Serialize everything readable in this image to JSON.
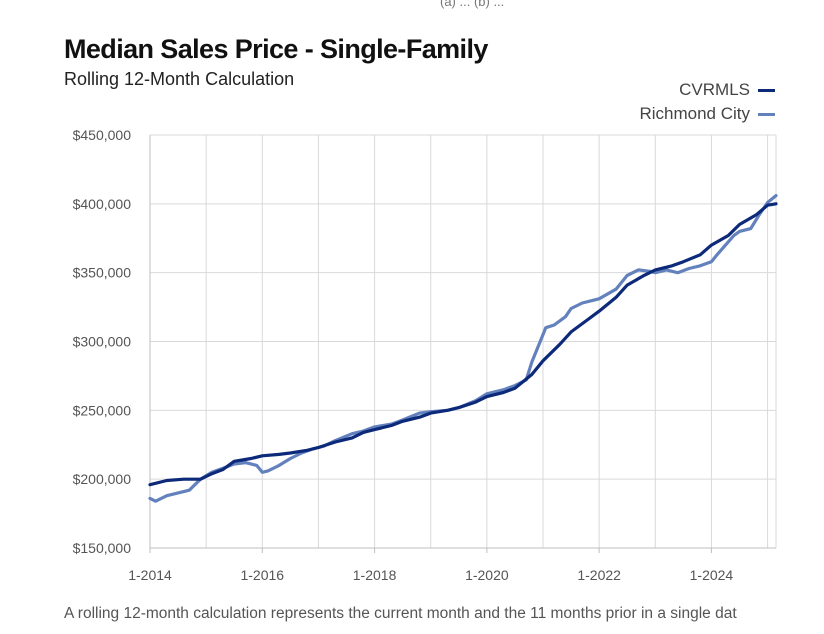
{
  "header": {
    "top_clip_text": "(a) ... (b) ...",
    "title": "Median Sales Price - Single-Family",
    "subtitle": "Rolling 12-Month Calculation"
  },
  "footnote": "A rolling 12-month calculation represents the current month and the 11 months prior in a single dat",
  "colors": {
    "cvrmls": "#0d2a7a",
    "richmond": "#6381bd",
    "grid": "#d9d9d9",
    "axis_text": "#555555"
  },
  "chart_data": {
    "type": "line",
    "title": "Median Sales Price - Single-Family",
    "subtitle": "Rolling 12-Month Calculation",
    "xlabel": "",
    "ylabel": "",
    "xlim": [
      2014.0,
      2025.15
    ],
    "ylim": [
      150000,
      450000
    ],
    "x_ticks": [
      2014,
      2016,
      2018,
      2020,
      2022,
      2024
    ],
    "x_tick_labels": [
      "1-2014",
      "1-2016",
      "1-2018",
      "1-2020",
      "1-2022",
      "1-2024"
    ],
    "y_ticks": [
      150000,
      200000,
      250000,
      300000,
      350000,
      400000,
      450000
    ],
    "y_tick_labels": [
      "$150,000",
      "$200,000",
      "$250,000",
      "$300,000",
      "$350,000",
      "$400,000",
      "$450,000"
    ],
    "grid": true,
    "legend_position": "top-right",
    "series": [
      {
        "name": "CVRMLS",
        "color": "#0d2a7a",
        "x": [
          2014.0,
          2014.3,
          2014.6,
          2014.9,
          2015.1,
          2015.3,
          2015.5,
          2015.8,
          2016.0,
          2016.3,
          2016.5,
          2016.8,
          2017.0,
          2017.3,
          2017.6,
          2017.8,
          2018.0,
          2018.3,
          2018.5,
          2018.8,
          2019.0,
          2019.3,
          2019.5,
          2019.8,
          2020.0,
          2020.3,
          2020.5,
          2020.8,
          2021.0,
          2021.3,
          2021.5,
          2021.8,
          2022.0,
          2022.3,
          2022.5,
          2022.8,
          2023.0,
          2023.3,
          2023.5,
          2023.8,
          2024.0,
          2024.3,
          2024.5,
          2024.8,
          2025.0,
          2025.15
        ],
        "y": [
          196000,
          199000,
          200000,
          200000,
          204000,
          207000,
          213000,
          215000,
          217000,
          218000,
          219000,
          221000,
          223000,
          227000,
          230000,
          234000,
          236000,
          239000,
          242000,
          245000,
          248000,
          250000,
          252000,
          256000,
          260000,
          263000,
          266000,
          276000,
          286000,
          298000,
          307000,
          316000,
          322000,
          332000,
          341000,
          348000,
          352000,
          355000,
          358000,
          363000,
          370000,
          377000,
          385000,
          392000,
          399000,
          400000
        ]
      },
      {
        "name": "Richmond City",
        "color": "#6381bd",
        "x": [
          2014.0,
          2014.1,
          2014.3,
          2014.5,
          2014.7,
          2014.9,
          2015.1,
          2015.3,
          2015.5,
          2015.7,
          2015.9,
          2016.0,
          2016.1,
          2016.3,
          2016.5,
          2016.7,
          2016.9,
          2017.1,
          2017.3,
          2017.6,
          2017.8,
          2018.0,
          2018.3,
          2018.5,
          2018.8,
          2019.0,
          2019.3,
          2019.5,
          2019.8,
          2020.0,
          2020.3,
          2020.5,
          2020.7,
          2020.8,
          2020.95,
          2021.05,
          2021.2,
          2021.4,
          2021.5,
          2021.7,
          2021.9,
          2022.0,
          2022.3,
          2022.5,
          2022.7,
          2022.9,
          2023.0,
          2023.2,
          2023.4,
          2023.6,
          2023.8,
          2024.0,
          2024.1,
          2024.25,
          2024.4,
          2024.5,
          2024.7,
          2024.85,
          2025.0,
          2025.15
        ],
        "y": [
          186000,
          184000,
          188000,
          190000,
          192000,
          200000,
          205000,
          208000,
          211000,
          212000,
          210000,
          205000,
          206000,
          210000,
          215000,
          219000,
          222000,
          224000,
          228000,
          233000,
          235000,
          238000,
          240000,
          243000,
          248000,
          249000,
          250000,
          252000,
          257000,
          262000,
          265000,
          268000,
          272000,
          285000,
          300000,
          310000,
          312000,
          318000,
          324000,
          328000,
          330000,
          331000,
          338000,
          348000,
          352000,
          351000,
          350000,
          352000,
          350000,
          353000,
          355000,
          358000,
          363000,
          370000,
          377000,
          380000,
          382000,
          392000,
          401000,
          406000
        ]
      }
    ]
  }
}
